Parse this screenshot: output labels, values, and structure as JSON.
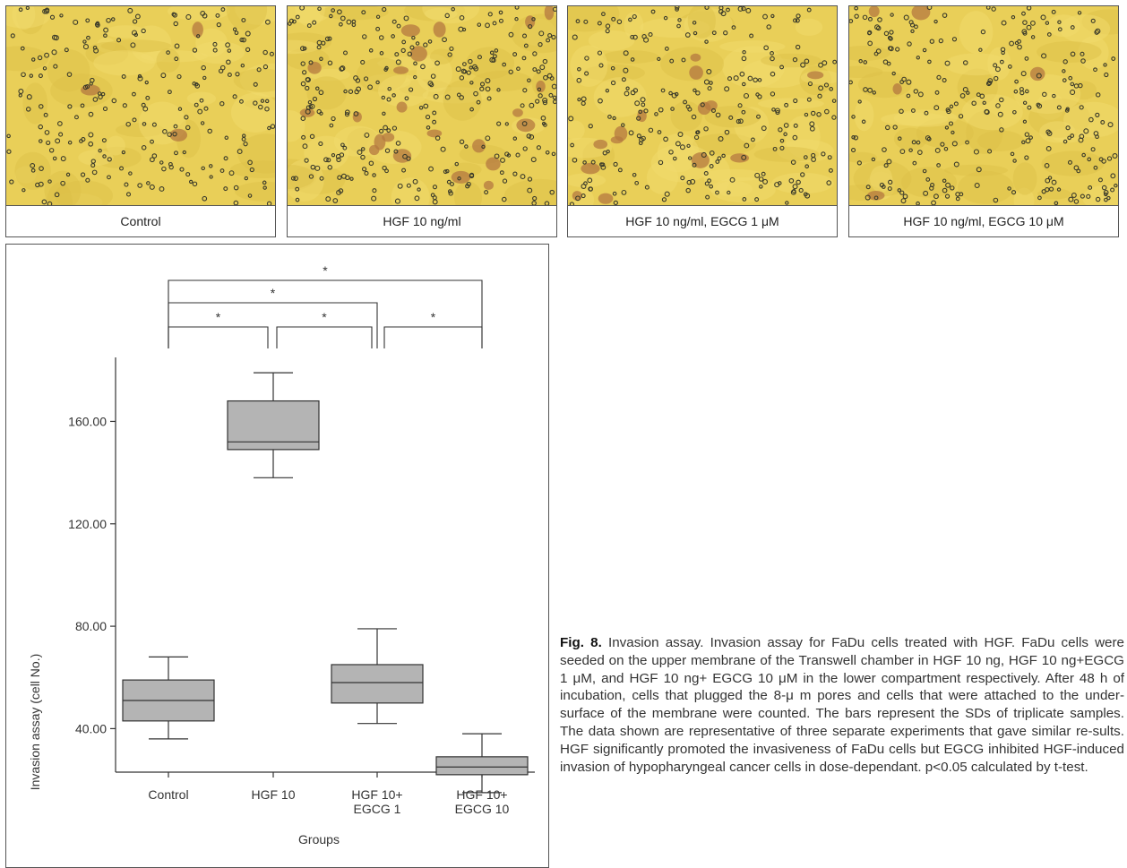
{
  "panels": [
    {
      "label": "Control",
      "density": "sparse"
    },
    {
      "label": "HGF 10 ng/ml",
      "density": "high"
    },
    {
      "label": "HGF 10 ng/ml, EGCG 1 μM",
      "density": "medium"
    },
    {
      "label": "HGF 10 ng/ml, EGCG 10 μM",
      "density": "low"
    }
  ],
  "colors": {
    "micrograph_bg": "#e9cf58",
    "cell_dark": "#3a3a2a",
    "cell_stained": "#b47840",
    "box_fill": "#b4b4b4",
    "axis": "#333333"
  },
  "chart_data": {
    "type": "boxplot",
    "xlabel": "Groups",
    "ylabel": "Invasion assay (cell No.)",
    "yticks": [
      "40.00",
      "80.00",
      "120.00",
      "160.00"
    ],
    "ytick_values": [
      40,
      80,
      120,
      160
    ],
    "ylim": [
      23,
      185
    ],
    "categories": [
      {
        "line1": "Control",
        "line2": ""
      },
      {
        "line1": "HGF 10",
        "line2": ""
      },
      {
        "line1": "HGF 10+",
        "line2": "EGCG 1"
      },
      {
        "line1": "HGF 10+",
        "line2": "EGCG 10"
      }
    ],
    "boxes": [
      {
        "min": 36,
        "q1": 43,
        "median": 51,
        "q3": 59,
        "max": 68
      },
      {
        "min": 138,
        "q1": 149,
        "median": 152,
        "q3": 168,
        "max": 179
      },
      {
        "min": 42,
        "q1": 50,
        "median": 58,
        "q3": 65,
        "max": 79
      },
      {
        "min": 15,
        "q1": 22,
        "median": 25,
        "q3": 29,
        "max": 38
      }
    ],
    "significance": [
      {
        "from": 0,
        "to": 3,
        "label": "*"
      },
      {
        "from": 0,
        "to": 2,
        "label": "*"
      },
      {
        "from": 0,
        "to": 1,
        "label": "*"
      },
      {
        "from": 1,
        "to": 2,
        "label": "*"
      },
      {
        "from": 2,
        "to": 3,
        "label": "*"
      }
    ],
    "grid": false
  },
  "caption": {
    "bold": "Fig. 8.",
    "text": " Invasion assay. Invasion assay for FaDu cells treated with HGF. FaDu cells were seeded on the upper membrane of the Transwell chamber in HGF 10 ng, HGF 10 ng+EGCG 1 μM, and HGF 10 ng+ EGCG 10 μM in the lower compartment respectively. After 48 h of incubation, cells that plugged the 8-μ m pores and cells that were attached to the under-surface of the membrane were counted. The bars represent the SDs of triplicate samples. The data shown are representative of three separate experiments that gave similar re-sults. HGF significantly promoted the invasiveness of FaDu cells but EGCG inhibited HGF-induced invasion of hypopharyngeal cancer cells in dose-dependant. p<0.05 calculated by t-test."
  }
}
